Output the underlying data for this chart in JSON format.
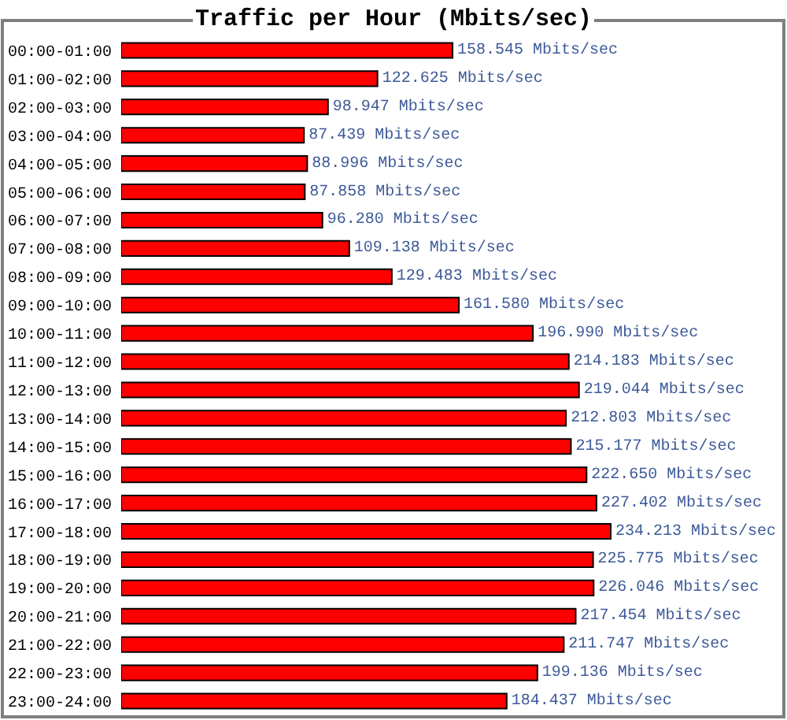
{
  "chart_data": {
    "type": "bar",
    "orientation": "horizontal",
    "title": "Traffic per Hour (Mbits/sec)",
    "color": "#ff0000",
    "tick_labels": "y",
    "categories": [
      "00:00-01:00",
      "01:00-02:00",
      "02:00-03:00",
      "03:00-04:00",
      "04:00-05:00",
      "05:00-06:00",
      "06:00-07:00",
      "07:00-08:00",
      "08:00-09:00",
      "09:00-10:00",
      "10:00-11:00",
      "11:00-12:00",
      "12:00-13:00",
      "13:00-14:00",
      "14:00-15:00",
      "15:00-16:00",
      "16:00-17:00",
      "17:00-18:00",
      "18:00-19:00",
      "19:00-20:00",
      "20:00-21:00",
      "21:00-22:00",
      "22:00-23:00",
      "23:00-24:00"
    ],
    "values": [
      158.545,
      122.625,
      98.947,
      87.439,
      88.996,
      87.858,
      96.28,
      109.138,
      129.483,
      161.58,
      196.99,
      214.183,
      219.044,
      212.803,
      215.177,
      222.65,
      227.402,
      234.213,
      225.775,
      226.046,
      217.454,
      211.747,
      199.136,
      184.437
    ],
    "value_labels": [
      "158.545 Mbits/sec",
      "122.625 Mbits/sec",
      "98.947 Mbits/sec",
      "87.439 Mbits/sec",
      "88.996 Mbits/sec",
      "87.858 Mbits/sec",
      "96.280 Mbits/sec",
      "109.138 Mbits/sec",
      "129.483 Mbits/sec",
      "161.580 Mbits/sec",
      "196.990 Mbits/sec",
      "214.183 Mbits/sec",
      "219.044 Mbits/sec",
      "212.803 Mbits/sec",
      "215.177 Mbits/sec",
      "222.650 Mbits/sec",
      "227.402 Mbits/sec",
      "234.213 Mbits/sec",
      "225.775 Mbits/sec",
      "226.046 Mbits/sec",
      "217.454 Mbits/sec",
      "211.747 Mbits/sec",
      "199.136 Mbits/sec",
      "184.437 Mbits/sec"
    ]
  }
}
